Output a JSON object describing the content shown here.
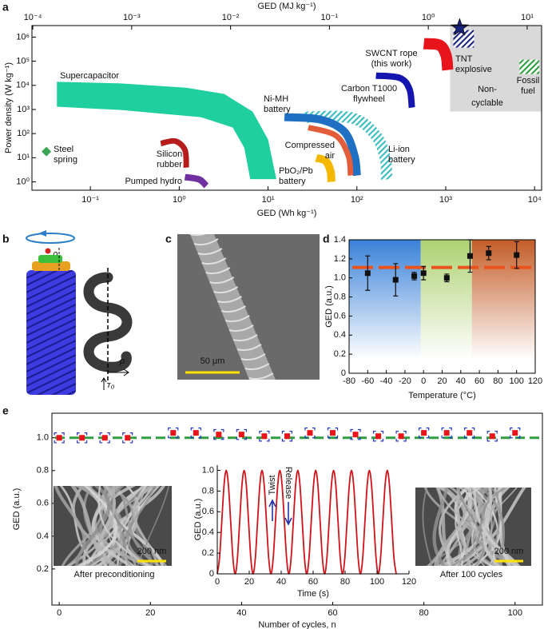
{
  "panel_labels": [
    "a",
    "b",
    "c",
    "d",
    "e"
  ],
  "panel_b": {
    "labels": [
      "ρ",
      "ρ",
      "r₀"
    ]
  },
  "panel_c": {
    "scale_bar": "50 μm"
  },
  "panel_e_images": [
    {
      "caption": "After preconditioning",
      "scale_bar": "200 nm"
    },
    {
      "caption": "After 100 cycles",
      "scale_bar": "200 nm"
    }
  ],
  "chart_data": [
    {
      "type": "region",
      "xlabel": "GED (Wh kg⁻¹)",
      "x2label": "GED (MJ kg⁻¹)",
      "ylabel": "Power density (W kg⁻¹)",
      "xscale": "log",
      "yscale": "log",
      "xlim": [
        0.022,
        12000
      ],
      "xticks": [
        {
          "value": 0.1,
          "label": "10⁻¹"
        },
        {
          "value": 1,
          "label": "10⁰"
        },
        {
          "value": 10,
          "label": "10¹"
        },
        {
          "value": 100,
          "label": "10²"
        },
        {
          "value": 1000,
          "label": "10³"
        },
        {
          "value": 10000,
          "label": "10⁴"
        }
      ],
      "x2lim": [
        9.8e-05,
        14
      ],
      "x2ticks": [
        {
          "value": 0.0001,
          "label": "10⁻⁴"
        },
        {
          "value": 0.001,
          "label": "10⁻³"
        },
        {
          "value": 0.01,
          "label": "10⁻²"
        },
        {
          "value": 0.1,
          "label": "10⁻¹"
        },
        {
          "value": 1,
          "label": "10⁰"
        },
        {
          "value": 10,
          "label": "10¹"
        }
      ],
      "ylim": [
        0.45,
        3000000
      ],
      "yticks": [
        {
          "value": 1,
          "label": "10⁰"
        },
        {
          "value": 10,
          "label": "10¹"
        },
        {
          "value": 100,
          "label": "10²"
        },
        {
          "value": 1000,
          "label": "10³"
        },
        {
          "value": 10000,
          "label": "10⁴"
        },
        {
          "value": 100000,
          "label": "10⁵"
        },
        {
          "value": 1000000,
          "label": "10⁶"
        }
      ],
      "areas": [
        {
          "label": [
            "Non-",
            "cyclable"
          ],
          "shape": "rect",
          "color": "#d9d9d9",
          "label_color": "#7f7f7f",
          "x": [
            1120,
            12000
          ],
          "y": [
            820,
            3000000
          ]
        },
        {
          "label": [
            "Supercapacitor"
          ],
          "shape": "polygon",
          "color": "#1fcf9f",
          "x": [
            0.042,
            0.22,
            1.2,
            3.2,
            6.7,
            10,
            12.4,
            6.3,
            5.4,
            4,
            1.75,
            0.22,
            0.042
          ],
          "y": [
            14000,
            12000,
            8000,
            4400,
            820,
            57,
            1.3,
            1.3,
            26,
            180,
            480,
            950,
            1300
          ]
        },
        {
          "label": [
            "Silicon",
            "rubber"
          ],
          "shape": "arc",
          "color": "#b71c1c",
          "x": [
            0.62,
            0.9,
            1.16,
            1.2
          ],
          "y": [
            38.8,
            48.9,
            21,
            3.9
          ]
        },
        {
          "label": [
            "Pumped hydro"
          ],
          "shape": "arc",
          "color": "#7030a0",
          "x": [
            1.16,
            1.68,
            2.02
          ],
          "y": [
            1.58,
            1.26,
            0.68
          ]
        },
        {
          "label": [
            "Steel",
            "spring"
          ],
          "shape": "point",
          "color": "#3aa655",
          "x": [
            0.032
          ],
          "y": [
            18
          ]
        },
        {
          "label": [
            "Li-ion",
            "battery"
          ],
          "shape": "arc",
          "hatch": true,
          "color": "#38bcc2",
          "x": [
            25.6,
            88,
            164,
            210,
            215
          ],
          "y": [
            481,
            446,
            83,
            8.5,
            1.26
          ]
        },
        {
          "label": [
            "Ni-MH",
            "battery"
          ],
          "shape": "arc",
          "color": "#1f6fc2",
          "x": [
            15.3,
            38.7,
            72,
            94,
            100
          ],
          "y": [
            481,
            383,
            122,
            12.4,
            1.84
          ]
        },
        {
          "label": [
            "Compressed",
            "air"
          ],
          "shape": "arc",
          "color": "#e35d3b",
          "x": [
            28.4,
            58,
            80,
            85
          ],
          "y": [
            179,
            83,
            12.4,
            1.84
          ]
        },
        {
          "label": [
            "PbO₂/Pb",
            "battery"
          ],
          "shape": "arc",
          "color": "#f5b800",
          "label_color": "#e0a800",
          "x": [
            34.9,
            44.7,
            50.6,
            51.6
          ],
          "y": [
            9.8,
            7.3,
            2.7,
            1
          ]
        },
        {
          "label": [
            "Carbon T1000",
            "flywheel"
          ],
          "shape": "arc",
          "color": "#1515b0",
          "x": [
            164,
            305,
            391,
            416
          ],
          "y": [
            25300,
            20200,
            6930,
            1200
          ]
        },
        {
          "label": [
            "SWCNT rope",
            "(this work)"
          ],
          "shape": "arc",
          "color": "#e8141b",
          "x": [
            567,
            857,
            1010,
            1052
          ],
          "y": [
            535000,
            459000,
            171000,
            43200
          ]
        },
        {
          "label": [
            "TNT",
            "explosive"
          ],
          "shape": "rect",
          "hatch": true,
          "color": "#1a237e",
          "x": [
            1217,
            2080
          ],
          "y": [
            366000,
            1960000
          ]
        },
        {
          "label": [
            "Fossil",
            "fuel"
          ],
          "shape": "rect",
          "hatch": true,
          "color": "#2e9e3e",
          "x": [
            6760,
            11300
          ],
          "y": [
            29500,
            116000
          ]
        },
        {
          "shape": "star",
          "color": "#1a237e",
          "x": [
            1435
          ],
          "y": [
            2460000
          ]
        }
      ]
    },
    {
      "type": "scatter",
      "xlabel": "Temperature (°C)",
      "ylabel": "GED (a.u.)",
      "xlim": [
        -80,
        120
      ],
      "xticks": [
        -80,
        -60,
        -40,
        -20,
        0,
        20,
        40,
        60,
        80,
        100,
        120
      ],
      "ylim": [
        0,
        1.4
      ],
      "yticks": [
        0,
        0.2,
        0.4,
        0.6,
        0.8,
        {
          "value": 1,
          "label": "1.0"
        },
        1.2,
        1.4
      ],
      "bands": [
        {
          "x": [
            -80,
            -3
          ],
          "color": "#2f7bd6"
        },
        {
          "x": [
            -3,
            52
          ],
          "color": "#a9cf6a"
        },
        {
          "x": [
            52,
            120
          ],
          "color": "#c0541c"
        }
      ],
      "reference": {
        "value": 1.11,
        "color": "#e8541b"
      },
      "x": [
        -60,
        -30,
        -10,
        0,
        25,
        50,
        70,
        100
      ],
      "values": [
        1.05,
        0.98,
        1.02,
        1.05,
        1.0,
        1.23,
        1.26,
        1.24
      ],
      "errors": [
        0.18,
        0.17,
        0.04,
        0.07,
        0.04,
        0.17,
        0.07,
        0.14
      ],
      "color": "#111111",
      "error_color": "#111111"
    },
    {
      "type": "scatter",
      "xlabel": "Number of cycles, n",
      "ylabel": "GED (a.u.)",
      "xlim": [
        -1.6,
        106
      ],
      "xticks": [
        0,
        20,
        40,
        60,
        80,
        100
      ],
      "ylim": [
        -0.02,
        1.15
      ],
      "yticks": [
        0.2,
        0.4,
        0.6,
        0.8,
        {
          "value": 1,
          "label": "1.0"
        }
      ],
      "reference": {
        "value": 1.0,
        "color": "#2e9e3e"
      },
      "x": [
        0,
        5,
        10,
        15,
        25,
        30,
        35,
        40,
        45,
        50,
        55,
        60,
        65,
        70,
        75,
        80,
        85,
        90,
        95,
        100
      ],
      "values": [
        1.0,
        1.0,
        1.0,
        1.0,
        1.03,
        1.03,
        1.02,
        1.02,
        1.01,
        1.01,
        1.03,
        1.03,
        1.02,
        1.01,
        1.01,
        1.03,
        1.03,
        1.03,
        1.01,
        1.03
      ],
      "errors": [
        0.03,
        0.03,
        0.03,
        0.03,
        0.03,
        0.03,
        0.03,
        0.03,
        0.03,
        0.03,
        0.03,
        0.03,
        0.03,
        0.03,
        0.03,
        0.03,
        0.03,
        0.03,
        0.03,
        0.03
      ],
      "color": "#e8141b",
      "error_color": "#2233cc"
    },
    {
      "type": "line",
      "xlabel": "Time (s)",
      "ylabel": "GED (a.u.)",
      "xlim": [
        0,
        120
      ],
      "xticks": [
        0,
        20,
        40,
        60,
        80,
        100,
        120
      ],
      "ylim": [
        0,
        1.05
      ],
      "yticks": [
        0,
        0.2,
        0.4,
        0.6,
        0.8,
        {
          "value": 1,
          "label": "1.0"
        }
      ],
      "annotations": [
        "Twist",
        "Release"
      ],
      "annotation_color": "#2233aa",
      "color": "#d0141b",
      "x": [
        0,
        1.4,
        2.8,
        4.2,
        5.6,
        7,
        8.4,
        9.8,
        11.2,
        12.6,
        14,
        15.4,
        16.8,
        18.2,
        19.6,
        21,
        22.4,
        23.8,
        25.2,
        26.6,
        28,
        29.4,
        30.8,
        32.2,
        33.6,
        35,
        36.4,
        37.8,
        39.2,
        40.6,
        42,
        43.4,
        44.8,
        46.2,
        47.6,
        49,
        50.4,
        51.8,
        53.2,
        54.6,
        56,
        57.4,
        58.8,
        60.2,
        61.6,
        63,
        64.4,
        65.8,
        67.2,
        68.6,
        70,
        71.4,
        72.8,
        74.2,
        75.6,
        77,
        78.4,
        79.8,
        81.2,
        82.6,
        84,
        85.4,
        86.8,
        88.2,
        89.6,
        91,
        92.4,
        93.8,
        95.2,
        96.6,
        98,
        99.4,
        100.8,
        102.2,
        103.6,
        105,
        106.4,
        107.8,
        109.2,
        110.6,
        112
      ],
      "values": [
        0,
        0.15,
        0.5,
        0.85,
        1,
        0.85,
        0.5,
        0.15,
        0,
        0.15,
        0.5,
        0.85,
        1,
        0.85,
        0.5,
        0.15,
        0,
        0.15,
        0.5,
        0.85,
        1,
        0.85,
        0.5,
        0.15,
        0,
        0.15,
        0.5,
        0.85,
        1,
        0.85,
        0.5,
        0.15,
        0,
        0.15,
        0.5,
        0.85,
        1,
        0.85,
        0.5,
        0.15,
        0,
        0.15,
        0.5,
        0.85,
        1,
        0.85,
        0.5,
        0.15,
        0,
        0.15,
        0.5,
        0.85,
        1,
        0.85,
        0.5,
        0.15,
        0,
        0.15,
        0.5,
        0.85,
        1,
        0.85,
        0.5,
        0.15,
        0,
        0.15,
        0.5,
        0.85,
        1,
        0.85,
        0.5,
        0.15,
        0,
        0.15,
        0.5,
        0.85,
        1,
        0.85,
        0.5,
        0.15,
        0
      ]
    }
  ]
}
